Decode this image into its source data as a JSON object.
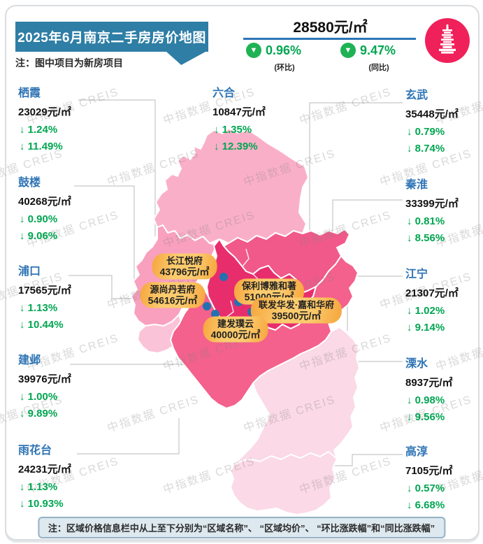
{
  "header": {
    "title": "2025年6月南京二手房房价地图",
    "note": "注：图中项目为新房项目",
    "avg_price": "28580元/㎡",
    "mom": {
      "value": "0.96%",
      "label": "(环比)"
    },
    "yoy": {
      "value": "9.47%",
      "label": "(同比)"
    },
    "arrow_icon": "▼",
    "logo_icon": "pagoda-icon"
  },
  "districts": [
    {
      "name": "栖霞",
      "price": "23029元/㎡",
      "mom": "↓ 1.24%",
      "yoy": "↓ 11.49%"
    },
    {
      "name": "鼓楼",
      "price": "40268元/㎡",
      "mom": "↓ 0.90%",
      "yoy": "↓ 9.06%"
    },
    {
      "name": "浦口",
      "price": "17565元/㎡",
      "mom": "↓ 1.13%",
      "yoy": "↓ 10.44%"
    },
    {
      "name": "建邺",
      "price": "39976元/㎡",
      "mom": "↓ 1.00%",
      "yoy": "↓ 9.89%"
    },
    {
      "name": "雨花台",
      "price": "24231元/㎡",
      "mom": "↓ 1.13%",
      "yoy": "↓ 10.93%"
    },
    {
      "name": "六合",
      "price": "10847元/㎡",
      "mom": "↓ 1.35%",
      "yoy": "↓ 12.39%"
    },
    {
      "name": "玄武",
      "price": "35448元/㎡",
      "mom": "↓ 0.79%",
      "yoy": "↓ 8.74%"
    },
    {
      "name": "秦淮",
      "price": "33399元/㎡",
      "mom": "↓ 0.81%",
      "yoy": "↓ 8.56%"
    },
    {
      "name": "江宁",
      "price": "21307元/㎡",
      "mom": "↓ 1.02%",
      "yoy": "↓ 9.14%"
    },
    {
      "name": "溧水",
      "price": "8937元/㎡",
      "mom": "↓ 0.98%",
      "yoy": "↓ 9.56%"
    },
    {
      "name": "高淳",
      "price": "7105元/㎡",
      "mom": "↓ 0.57%",
      "yoy": "↓ 6.68%"
    }
  ],
  "projects": [
    {
      "name": "长江悦府",
      "price": "43796元/㎡"
    },
    {
      "name": "源尚丹若府",
      "price": "54616元/㎡"
    },
    {
      "name": "保利博雅和著",
      "price": "51000元/㎡"
    },
    {
      "name": "联发华发·嘉和华府",
      "price": "39500元/㎡"
    },
    {
      "name": "建发璞云",
      "price": "40000元/㎡"
    }
  ],
  "footer_note": "注：区域价格信息栏中从上至下分别为“区域名称”、 “区域均价”、 “环比涨跌幅”和“同比涨跌幅”",
  "watermark": {
    "text": "中指数据  CREIS"
  },
  "colors": {
    "title_bar": "#2E7EA6",
    "district_name_blue": "#2E74B5",
    "change_green": "#00A651",
    "badge_green": "#1FB254",
    "logo_red": "#F0215A",
    "pill_orange": "#F7AC42",
    "marker_blue": "#2272B0",
    "map": {
      "liuhe": "#FAAFC9",
      "pukou": "#F9A0BE",
      "pukou_south": "#FBC3D7",
      "qixia": "#F0598A",
      "central": "#E82D6D",
      "jiangning": "#F4618C",
      "south_light": "#FBD9E6"
    }
  }
}
